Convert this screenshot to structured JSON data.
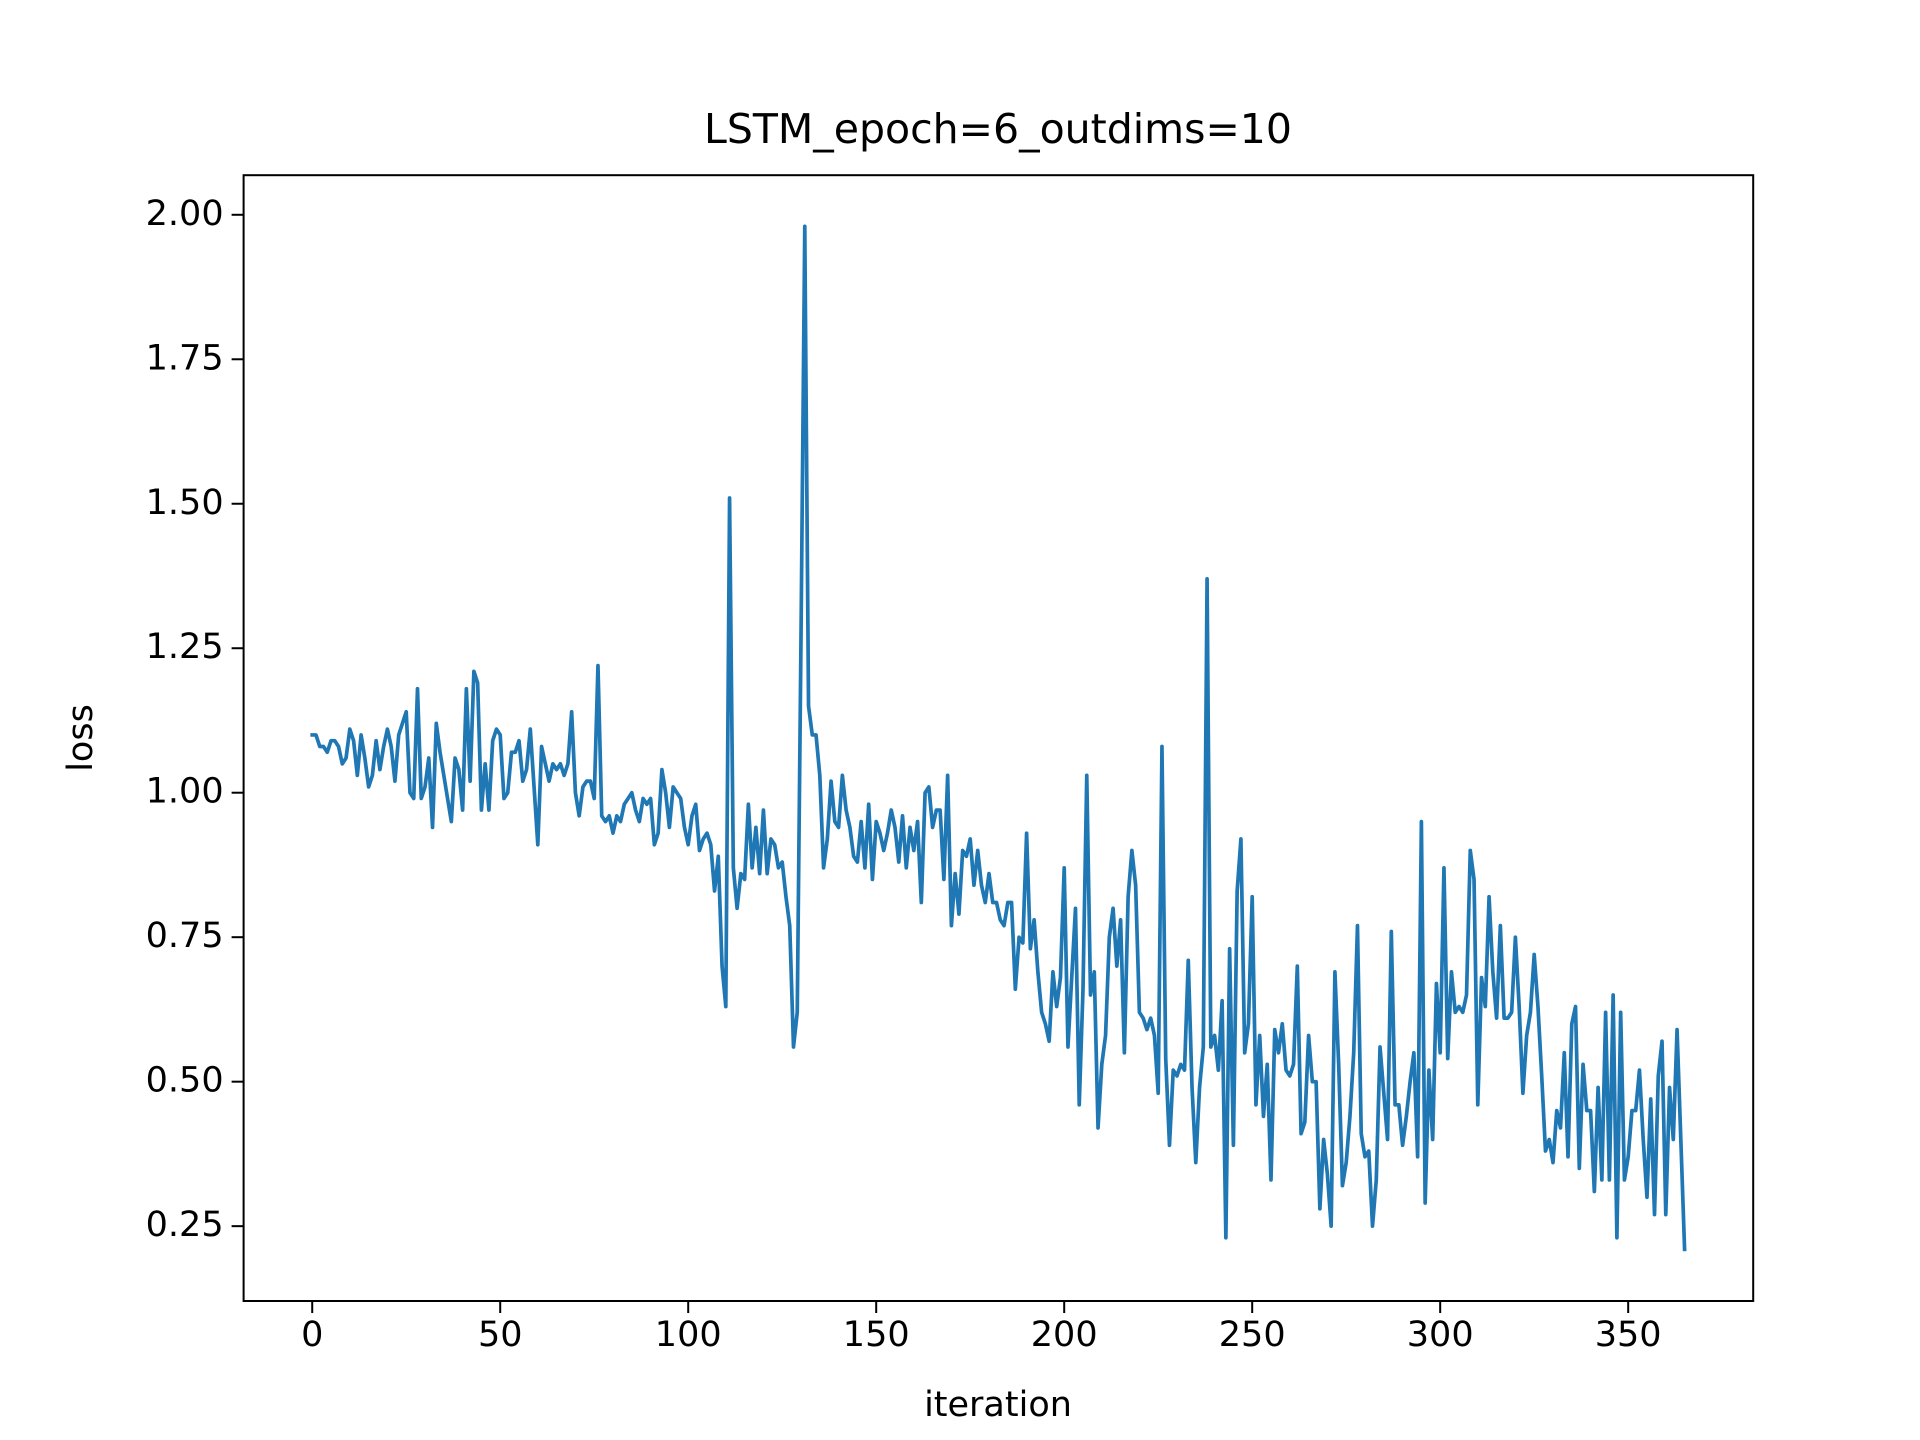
{
  "chart_data": {
    "type": "line",
    "title": "LSTM_epoch=6_outdims=10",
    "x_label": "iteration",
    "y_label": "loss",
    "color": "#1f77b4",
    "xlim": [
      -18.25,
      383.25
    ],
    "ylim": [
      0.1205,
      2.0685
    ],
    "xticks": [
      0,
      50,
      100,
      150,
      200,
      250,
      300,
      350
    ],
    "yticks": [
      0.25,
      {
        "value": 0.5,
        "label": "0.50"
      },
      0.75,
      {
        "value": 1.0,
        "label": "1.00"
      },
      1.25,
      {
        "value": 1.5,
        "label": "1.50"
      },
      1.75,
      {
        "value": 2.0,
        "label": "2.00"
      }
    ],
    "x": [
      0,
      1,
      2,
      3,
      4,
      5,
      6,
      7,
      8,
      9,
      10,
      11,
      12,
      13,
      14,
      15,
      16,
      17,
      18,
      19,
      20,
      21,
      22,
      23,
      24,
      25,
      26,
      27,
      28,
      29,
      30,
      31,
      32,
      33,
      34,
      35,
      36,
      37,
      38,
      39,
      40,
      41,
      42,
      43,
      44,
      45,
      46,
      47,
      48,
      49,
      50,
      51,
      52,
      53,
      54,
      55,
      56,
      57,
      58,
      59,
      60,
      61,
      62,
      63,
      64,
      65,
      66,
      67,
      68,
      69,
      70,
      71,
      72,
      73,
      74,
      75,
      76,
      77,
      78,
      79,
      80,
      81,
      82,
      83,
      84,
      85,
      86,
      87,
      88,
      89,
      90,
      91,
      92,
      93,
      94,
      95,
      96,
      97,
      98,
      99,
      100,
      101,
      102,
      103,
      104,
      105,
      106,
      107,
      108,
      109,
      110,
      111,
      112,
      113,
      114,
      115,
      116,
      117,
      118,
      119,
      120,
      121,
      122,
      123,
      124,
      125,
      126,
      127,
      128,
      129,
      130,
      131,
      132,
      133,
      134,
      135,
      136,
      137,
      138,
      139,
      140,
      141,
      142,
      143,
      144,
      145,
      146,
      147,
      148,
      149,
      150,
      151,
      152,
      153,
      154,
      155,
      156,
      157,
      158,
      159,
      160,
      161,
      162,
      163,
      164,
      165,
      166,
      167,
      168,
      169,
      170,
      171,
      172,
      173,
      174,
      175,
      176,
      177,
      178,
      179,
      180,
      181,
      182,
      183,
      184,
      185,
      186,
      187,
      188,
      189,
      190,
      191,
      192,
      193,
      194,
      195,
      196,
      197,
      198,
      199,
      200,
      201,
      202,
      203,
      204,
      205,
      206,
      207,
      208,
      209,
      210,
      211,
      212,
      213,
      214,
      215,
      216,
      217,
      218,
      219,
      220,
      221,
      222,
      223,
      224,
      225,
      226,
      227,
      228,
      229,
      230,
      231,
      232,
      233,
      234,
      235,
      236,
      237,
      238,
      239,
      240,
      241,
      242,
      243,
      244,
      245,
      246,
      247,
      248,
      249,
      250,
      251,
      252,
      253,
      254,
      255,
      256,
      257,
      258,
      259,
      260,
      261,
      262,
      263,
      264,
      265,
      266,
      267,
      268,
      269,
      270,
      271,
      272,
      273,
      274,
      275,
      276,
      277,
      278,
      279,
      280,
      281,
      282,
      283,
      284,
      285,
      286,
      287,
      288,
      289,
      290,
      291,
      292,
      293,
      294,
      295,
      296,
      297,
      298,
      299,
      300,
      301,
      302,
      303,
      304,
      305,
      306,
      307,
      308,
      309,
      310,
      311,
      312,
      313,
      314,
      315,
      316,
      317,
      318,
      319,
      320,
      321,
      322,
      323,
      324,
      325,
      326,
      327,
      328,
      329,
      330,
      331,
      332,
      333,
      334,
      335,
      336,
      337,
      338,
      339,
      340,
      341,
      342,
      343,
      344,
      345,
      346,
      347,
      348,
      349,
      350,
      351,
      352,
      353,
      354,
      355,
      356,
      357,
      358,
      359,
      360,
      361,
      362,
      363,
      364,
      365
    ],
    "values": [
      1.1,
      1.1,
      1.08,
      1.08,
      1.07,
      1.09,
      1.09,
      1.08,
      1.05,
      1.06,
      1.11,
      1.09,
      1.03,
      1.1,
      1.06,
      1.01,
      1.03,
      1.09,
      1.04,
      1.08,
      1.11,
      1.08,
      1.02,
      1.1,
      1.12,
      1.14,
      1.0,
      0.99,
      1.18,
      0.99,
      1.01,
      1.06,
      0.94,
      1.12,
      1.07,
      1.03,
      0.99,
      0.95,
      1.06,
      1.04,
      0.97,
      1.18,
      1.02,
      1.21,
      1.19,
      0.97,
      1.05,
      0.97,
      1.09,
      1.11,
      1.1,
      0.99,
      1.0,
      1.07,
      1.07,
      1.09,
      1.02,
      1.04,
      1.11,
      1.01,
      0.91,
      1.08,
      1.05,
      1.02,
      1.05,
      1.04,
      1.05,
      1.03,
      1.05,
      1.14,
      1.0,
      0.96,
      1.01,
      1.02,
      1.02,
      0.99,
      1.22,
      0.96,
      0.95,
      0.96,
      0.93,
      0.96,
      0.95,
      0.98,
      0.99,
      1.0,
      0.97,
      0.95,
      0.99,
      0.98,
      0.99,
      0.91,
      0.93,
      1.04,
      1.0,
      0.94,
      1.01,
      1.0,
      0.99,
      0.94,
      0.91,
      0.96,
      0.98,
      0.9,
      0.92,
      0.93,
      0.91,
      0.83,
      0.89,
      0.7,
      0.63,
      1.51,
      0.87,
      0.8,
      0.86,
      0.85,
      0.98,
      0.87,
      0.94,
      0.86,
      0.97,
      0.86,
      0.92,
      0.91,
      0.87,
      0.88,
      0.82,
      0.77,
      0.56,
      0.62,
      1.27,
      1.98,
      1.15,
      1.1,
      1.1,
      1.03,
      0.87,
      0.92,
      1.02,
      0.95,
      0.94,
      1.03,
      0.97,
      0.94,
      0.89,
      0.88,
      0.95,
      0.87,
      0.98,
      0.85,
      0.95,
      0.93,
      0.9,
      0.93,
      0.97,
      0.94,
      0.88,
      0.96,
      0.87,
      0.94,
      0.9,
      0.95,
      0.81,
      1.0,
      1.01,
      0.94,
      0.97,
      0.97,
      0.85,
      1.03,
      0.77,
      0.86,
      0.79,
      0.9,
      0.89,
      0.92,
      0.84,
      0.9,
      0.84,
      0.81,
      0.86,
      0.81,
      0.81,
      0.78,
      0.77,
      0.81,
      0.81,
      0.66,
      0.75,
      0.74,
      0.93,
      0.73,
      0.78,
      0.69,
      0.62,
      0.6,
      0.57,
      0.69,
      0.63,
      0.68,
      0.87,
      0.56,
      0.68,
      0.8,
      0.46,
      0.66,
      1.03,
      0.65,
      0.69,
      0.42,
      0.53,
      0.58,
      0.75,
      0.8,
      0.7,
      0.78,
      0.55,
      0.82,
      0.9,
      0.84,
      0.62,
      0.61,
      0.59,
      0.61,
      0.58,
      0.48,
      1.08,
      0.54,
      0.39,
      0.52,
      0.51,
      0.53,
      0.52,
      0.71,
      0.49,
      0.36,
      0.49,
      0.56,
      1.37,
      0.56,
      0.58,
      0.52,
      0.64,
      0.23,
      0.73,
      0.39,
      0.83,
      0.92,
      0.55,
      0.6,
      0.82,
      0.46,
      0.58,
      0.44,
      0.53,
      0.33,
      0.59,
      0.55,
      0.6,
      0.52,
      0.51,
      0.53,
      0.7,
      0.41,
      0.43,
      0.58,
      0.5,
      0.5,
      0.28,
      0.4,
      0.34,
      0.25,
      0.69,
      0.53,
      0.32,
      0.36,
      0.44,
      0.55,
      0.77,
      0.41,
      0.37,
      0.38,
      0.25,
      0.33,
      0.56,
      0.48,
      0.4,
      0.76,
      0.46,
      0.46,
      0.39,
      0.44,
      0.5,
      0.55,
      0.37,
      0.95,
      0.29,
      0.52,
      0.4,
      0.67,
      0.55,
      0.87,
      0.54,
      0.69,
      0.62,
      0.63,
      0.62,
      0.65,
      0.9,
      0.85,
      0.46,
      0.68,
      0.63,
      0.82,
      0.69,
      0.61,
      0.77,
      0.61,
      0.61,
      0.62,
      0.75,
      0.63,
      0.48,
      0.58,
      0.62,
      0.72,
      0.63,
      0.51,
      0.38,
      0.4,
      0.36,
      0.45,
      0.42,
      0.55,
      0.37,
      0.6,
      0.63,
      0.35,
      0.53,
      0.45,
      0.45,
      0.31,
      0.49,
      0.33,
      0.62,
      0.33,
      0.65,
      0.23,
      0.62,
      0.33,
      0.37,
      0.45,
      0.45,
      0.52,
      0.4,
      0.3,
      0.47,
      0.27,
      0.51,
      0.57,
      0.27,
      0.49,
      0.4,
      0.59,
      0.4,
      0.21
    ]
  }
}
